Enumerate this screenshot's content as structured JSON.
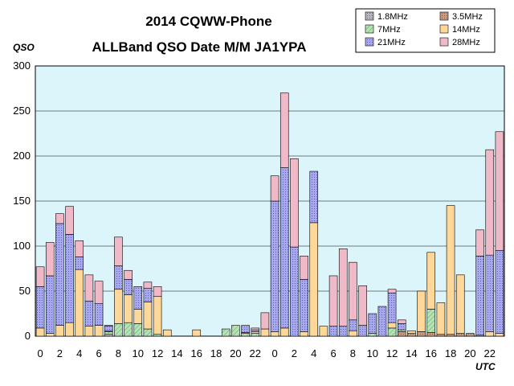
{
  "chart_data": {
    "type": "bar",
    "stacked": true,
    "title_line1": "2014 CQWW-Phone",
    "title_line2": "ALLBand QSO Date M/M JA1YPA",
    "ylabel": "QSO",
    "xlabel": "UTC",
    "ylim": [
      0,
      300
    ],
    "yticks": [
      0,
      50,
      100,
      150,
      200,
      250,
      300
    ],
    "grid": true,
    "legend_position": "top-right",
    "plot_background": "#dcf5fb",
    "categories": [
      "0",
      "1",
      "2",
      "3",
      "4",
      "5",
      "6",
      "7",
      "8",
      "9",
      "10",
      "11",
      "12",
      "13",
      "14",
      "15",
      "16",
      "17",
      "18",
      "19",
      "20",
      "21",
      "22",
      "23",
      "0",
      "1",
      "2",
      "3",
      "4",
      "5",
      "6",
      "7",
      "8",
      "9",
      "10",
      "11",
      "12",
      "13",
      "14",
      "15",
      "16",
      "17",
      "18",
      "19",
      "20",
      "21",
      "22",
      "23"
    ],
    "x_tick_labels": [
      "0",
      "",
      "2",
      "",
      "4",
      "",
      "6",
      "",
      "8",
      "",
      "10",
      "",
      "12",
      "",
      "14",
      "",
      "16",
      "",
      "18",
      "",
      "20",
      "",
      "22",
      "",
      "0",
      "",
      "2",
      "",
      "4",
      "",
      "6",
      "",
      "8",
      "",
      "10",
      "",
      "12",
      "",
      "14",
      "",
      "16",
      "",
      "18",
      "",
      "20",
      "",
      "22",
      ""
    ],
    "series": [
      {
        "name": "1.8MHz",
        "color": "#b8b8b8",
        "pattern": "dots",
        "values": [
          0,
          0,
          0,
          0,
          0,
          0,
          0,
          2,
          0,
          0,
          0,
          0,
          0,
          0,
          0,
          0,
          0,
          0,
          0,
          0,
          0,
          0,
          0,
          0,
          0,
          0,
          0,
          0,
          0,
          0,
          0,
          0,
          0,
          0,
          0,
          0,
          0,
          0,
          0,
          0,
          0,
          0,
          0,
          0,
          0,
          0,
          0,
          0
        ]
      },
      {
        "name": "3.5MHz",
        "color": "#cc9a78",
        "pattern": "dots",
        "values": [
          0,
          0,
          0,
          0,
          0,
          0,
          0,
          0,
          0,
          0,
          0,
          0,
          0,
          0,
          0,
          0,
          0,
          0,
          0,
          0,
          0,
          0,
          0,
          0,
          0,
          0,
          0,
          0,
          0,
          0,
          0,
          0,
          0,
          0,
          0,
          0,
          0,
          5,
          3,
          5,
          4,
          2,
          2,
          3,
          3,
          0,
          0,
          0
        ]
      },
      {
        "name": "7MHz",
        "color": "#b5e3b5",
        "pattern": "hatch",
        "values": [
          0,
          0,
          0,
          0,
          0,
          0,
          0,
          3,
          14,
          15,
          14,
          8,
          2,
          0,
          0,
          0,
          0,
          0,
          0,
          8,
          12,
          3,
          3,
          0,
          0,
          0,
          0,
          0,
          0,
          0,
          0,
          0,
          0,
          0,
          3,
          0,
          9,
          2,
          0,
          0,
          26,
          0,
          0,
          0,
          0,
          0,
          0,
          0
        ]
      },
      {
        "name": "14MHz",
        "color": "#ffd899",
        "pattern": "none",
        "values": [
          9,
          3,
          12,
          15,
          74,
          11,
          12,
          1,
          38,
          31,
          16,
          30,
          42,
          7,
          0,
          0,
          7,
          0,
          0,
          0,
          0,
          1,
          2,
          8,
          5,
          9,
          0,
          5,
          126,
          11,
          0,
          0,
          6,
          0,
          0,
          0,
          6,
          0,
          3,
          45,
          63,
          35,
          143,
          65,
          0,
          1,
          5,
          3
        ]
      },
      {
        "name": "21MHz",
        "color": "#a8a8f0",
        "pattern": "dots",
        "values": [
          46,
          64,
          113,
          98,
          14,
          28,
          24,
          5,
          26,
          17,
          25,
          15,
          0,
          0,
          0,
          0,
          0,
          0,
          0,
          0,
          0,
          8,
          2,
          0,
          145,
          178,
          99,
          58,
          57,
          0,
          11,
          11,
          12,
          12,
          22,
          33,
          33,
          7,
          0,
          0,
          0,
          0,
          0,
          0,
          0,
          88,
          85,
          92
        ]
      },
      {
        "name": "28MHz",
        "color": "#f0b9c8",
        "pattern": "none",
        "values": [
          22,
          37,
          11,
          31,
          18,
          29,
          25,
          1,
          32,
          10,
          0,
          7,
          11,
          0,
          0,
          0,
          0,
          0,
          0,
          0,
          0,
          0,
          2,
          18,
          28,
          83,
          98,
          26,
          0,
          0,
          56,
          86,
          64,
          44,
          0,
          0,
          4,
          4,
          0,
          0,
          0,
          0,
          0,
          0,
          0,
          29,
          117,
          132
        ]
      }
    ]
  }
}
